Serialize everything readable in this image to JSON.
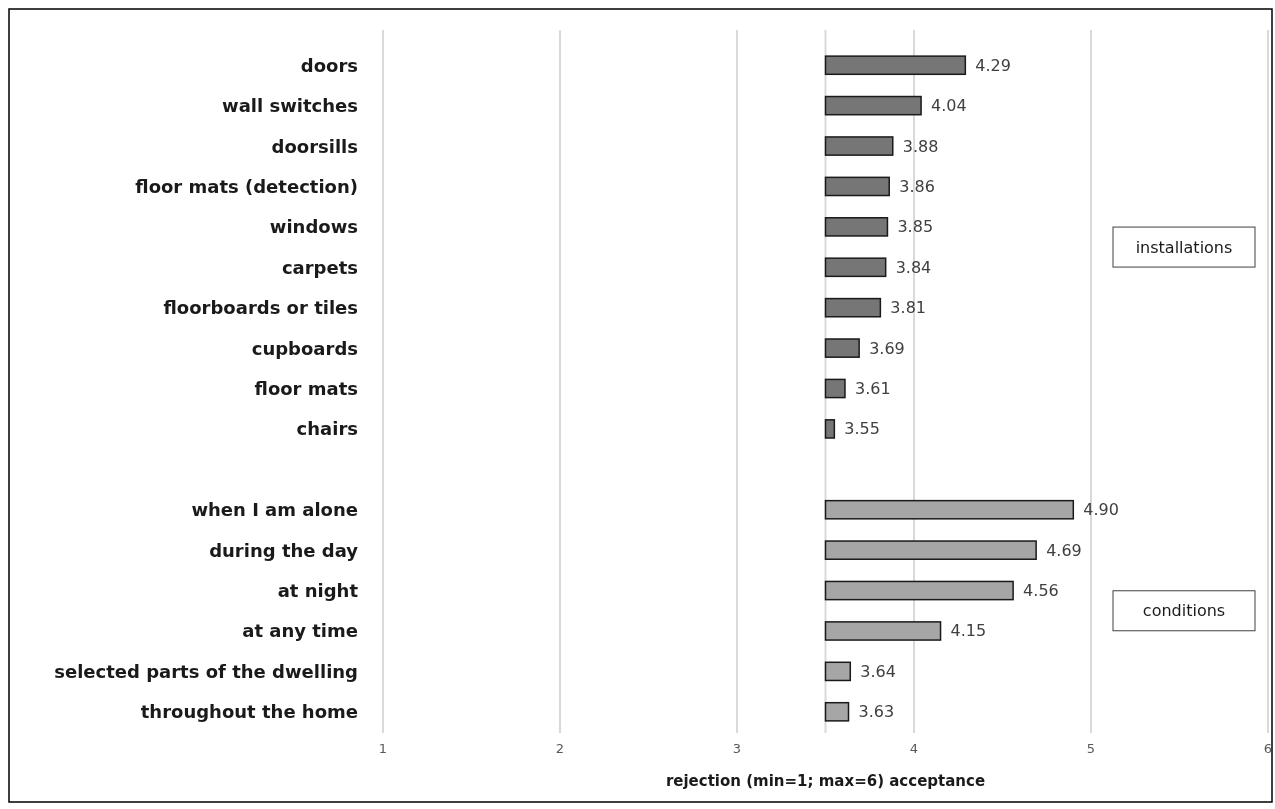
{
  "chart_data": {
    "type": "bar",
    "orientation": "horizontal",
    "xlabel": "rejection (min=1; max=6) acceptance",
    "categories": [
      "doors",
      "wall switches",
      "doorsills",
      "floor mats (detection)",
      "windows",
      "carpets",
      "floorboards or tiles",
      "cupboards",
      "floor mats",
      "chairs",
      null,
      "when I am alone",
      "during the day",
      "at night",
      "at any time",
      "selected parts of the dwelling",
      "throughout the home"
    ],
    "base": [
      3.5,
      3.5,
      3.5,
      3.5,
      3.5,
      3.5,
      3.5,
      3.5,
      3.5,
      3.5,
      null,
      3.5,
      3.5,
      3.5,
      3.5,
      3.5,
      3.5
    ],
    "values": [
      0.79,
      0.54,
      0.38,
      0.36,
      0.35,
      0.34,
      0.31,
      0.19,
      0.11,
      0.05,
      null,
      1.4,
      1.19,
      1.06,
      0.65,
      0.14,
      0.13
    ],
    "colors": [
      "#767676",
      "#767676",
      "#767676",
      "#767676",
      "#767676",
      "#767676",
      "#767676",
      "#767676",
      "#767676",
      "#767676",
      null,
      "#a6a6a6",
      "#a6a6a6",
      "#a6a6a6",
      "#a6a6a6",
      "#a6a6a6",
      "#a6a6a6"
    ],
    "value_labels": [
      "4.29",
      "4.04",
      "3.88",
      "3.86",
      "3.85",
      "3.84",
      "3.81",
      "3.69",
      "3.61",
      "3.55",
      null,
      "4.90",
      "4.69",
      "4.56",
      "4.15",
      "3.64",
      "3.63"
    ],
    "ref_lines": [
      {
        "axis": "x",
        "value": 3.5,
        "color": "#d9d9d9"
      }
    ],
    "xlim": [
      1,
      6
    ],
    "xticks": [
      1,
      2,
      3,
      4,
      5,
      6
    ],
    "grid": "x",
    "annotations": [
      "installations",
      "conditions"
    ]
  }
}
